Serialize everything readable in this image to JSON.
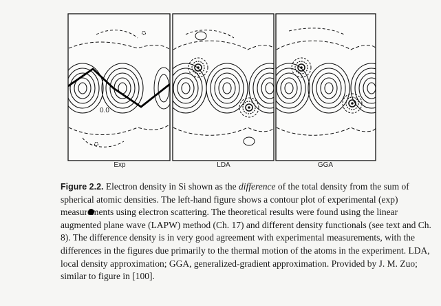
{
  "panels": [
    {
      "label": "Exp",
      "annotation": "0.0"
    },
    {
      "label": "LDA"
    },
    {
      "label": "GGA"
    }
  ],
  "caption": {
    "label": "Figure 2.2.",
    "t1": "Electron density in Si shown as the",
    "emph": "difference",
    "t2": "of the total density from the sum of spherical atomic densities. The left-hand figure shows a contour plot of experimental (exp) measurements using electron scattering. The theoretical results were found using the linear augmented plane wave (LAPW) method (Ch. 17) and different density functionals (see text and Ch. 8). The difference density is in very good agreement with experimental measurements, with the differences in the figures due primarily to the thermal motion of the atoms in the experiment. LDA, local density approximation; GGA, generalized-gradient approximation. Provided by J. M. Zuo; similar to figure in [100]."
  }
}
